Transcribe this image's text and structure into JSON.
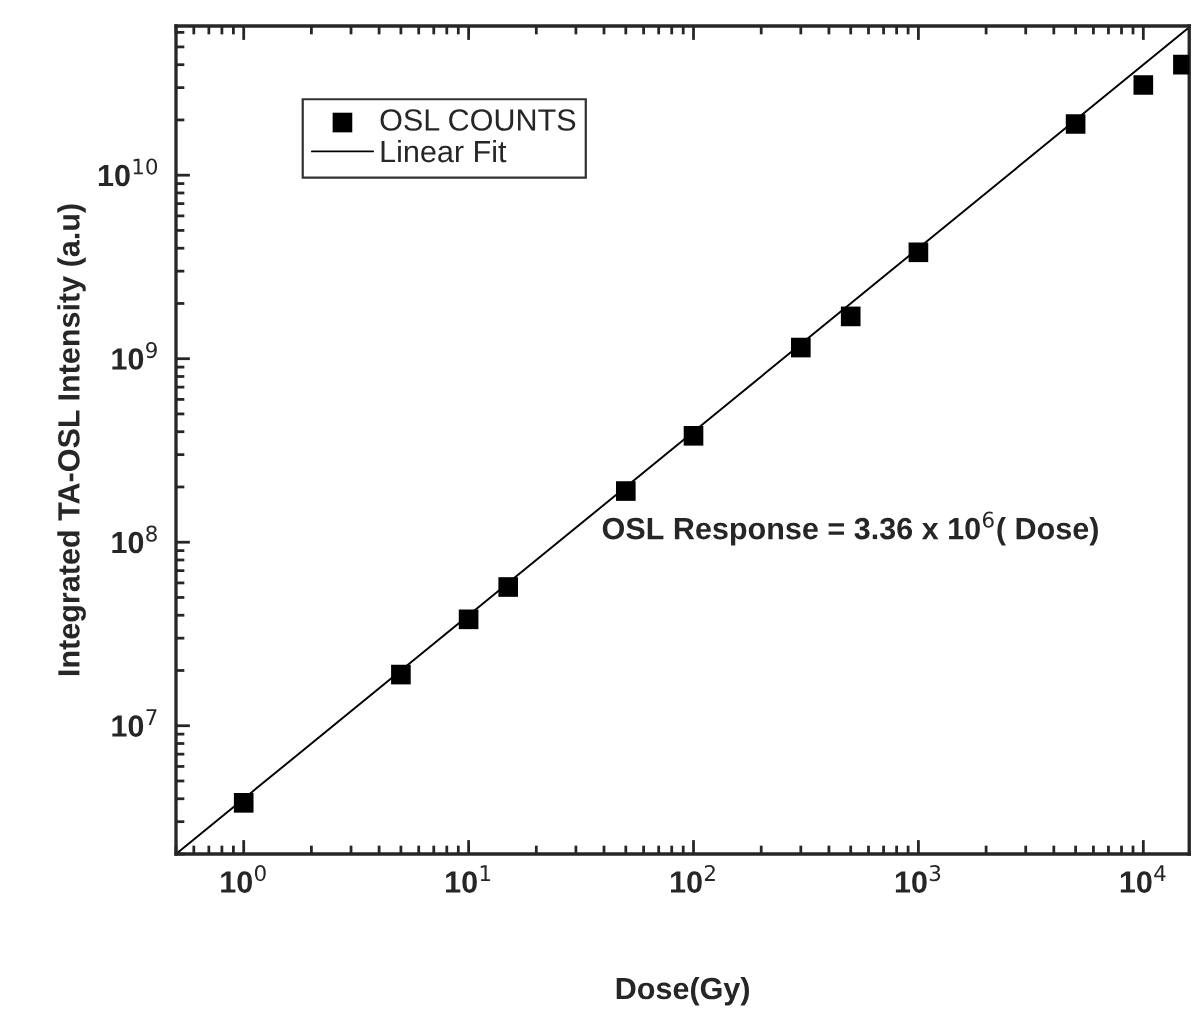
{
  "chart_data": {
    "type": "scatter",
    "xlabel": "Dose(Gy)",
    "ylabel": "Integrated TA-OSL Intensity (a.u)",
    "log": "xy",
    "legend": "top left",
    "grid": false,
    "x": [
      1,
      5,
      10,
      15,
      50,
      100,
      300,
      500,
      1000,
      5000,
      10000,
      15000
    ],
    "series": [
      {
        "name": "OSL COUNTS",
        "marker": "square",
        "color": "#000000",
        "values": [
          3800000.0,
          19000000.0,
          38000000.0,
          57000000.0,
          190000000.0,
          380000000.0,
          1150000000.0,
          1700000000.0,
          3800000000.0,
          19000000000.0,
          31000000000.0,
          40000000000.0
        ]
      },
      {
        "name": "Linear Fit",
        "type": "line",
        "color": "#000000",
        "line_style": "solid",
        "x": [
          0.5,
          16000
        ],
        "values": [
          2000000.0,
          64000000000.0
        ]
      }
    ],
    "xlim": [
      0.5,
      16000
    ],
    "ylim": [
      2000000.0,
      65000000000.0
    ],
    "xticks": [
      {
        "value": 1,
        "label": "10$^{0}$"
      },
      {
        "value": 10,
        "label": "10$^{1}$"
      },
      {
        "value": 100,
        "label": "10$^{2}$"
      },
      {
        "value": 1000,
        "label": "10$^{3}$"
      },
      {
        "value": 10000,
        "label": "10$^{4}$"
      }
    ],
    "yticks": [
      {
        "value": 10000000.0,
        "label": "10$^{7}$"
      },
      {
        "value": 100000000.0,
        "label": "10$^{8}$"
      },
      {
        "value": 1000000000.0,
        "label": "10$^{9}$"
      },
      {
        "value": 10000000000.0,
        "label": "10$^{10}$"
      }
    ],
    "annotations": [
      "OSL Response = 3.36 x 10$^{6}$( Dose)"
    ]
  }
}
